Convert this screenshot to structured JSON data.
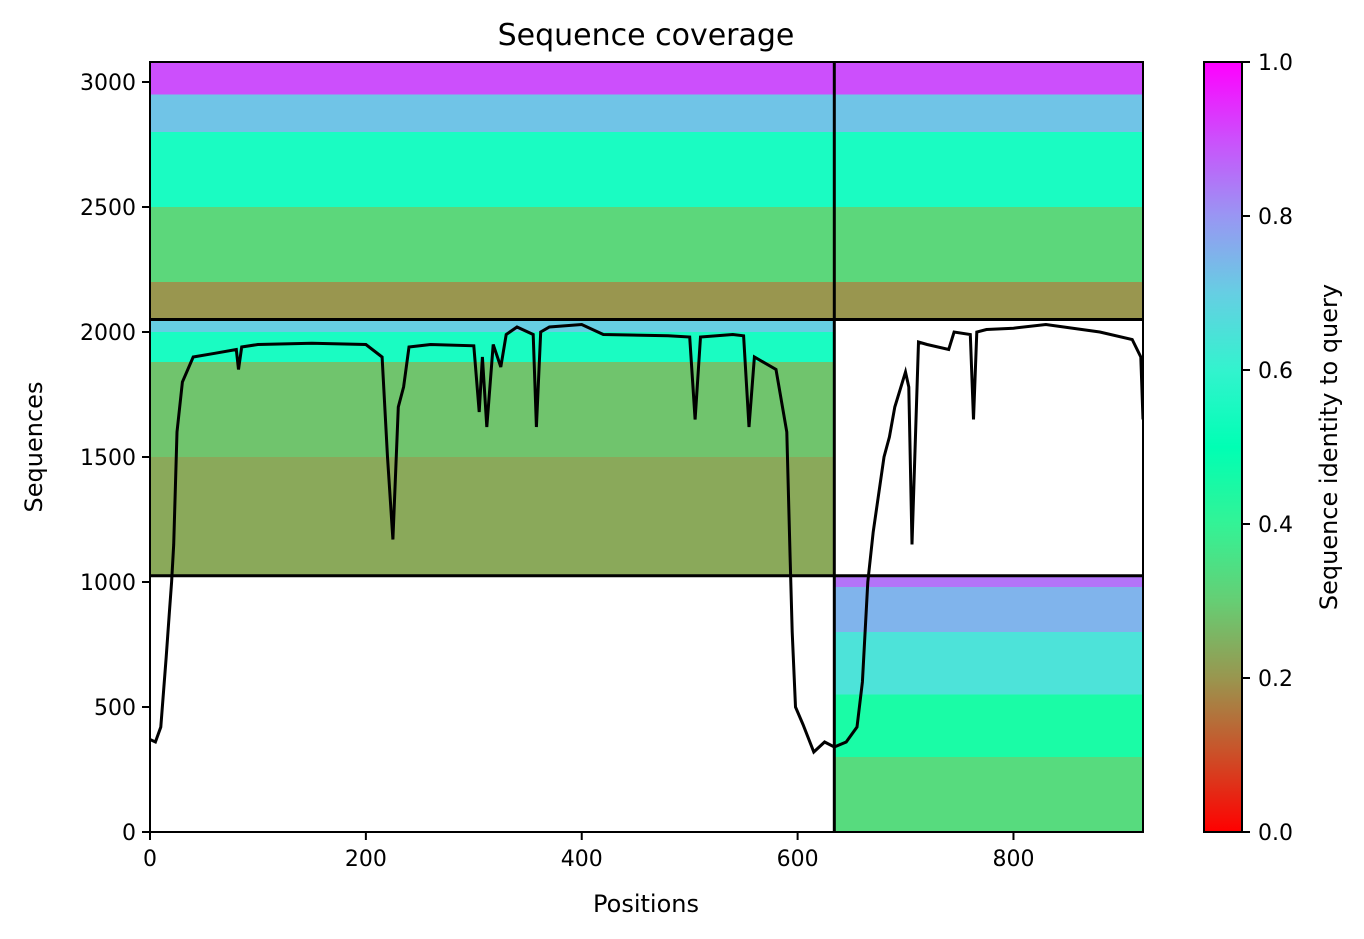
{
  "chart_data": {
    "type": "heatmap",
    "title": "Sequence coverage",
    "xlabel": "Positions",
    "ylabel": "Sequences",
    "xlim": [
      0,
      920
    ],
    "ylim": [
      0,
      3080
    ],
    "xticks": [
      0,
      200,
      400,
      600,
      800
    ],
    "yticks": [
      0,
      500,
      1000,
      1500,
      2000,
      2500,
      3000
    ],
    "grid": false,
    "colorbar": {
      "label": "Sequence identity to query",
      "range": [
        0.0,
        1.0
      ],
      "ticks": [
        0.0,
        0.2,
        0.4,
        0.6,
        0.8,
        1.0
      ],
      "colormap": "rainbow_r"
    },
    "chain_boundary_x": 634,
    "block_boundaries_y": [
      1025,
      2050
    ],
    "blocks": [
      {
        "name": "paired",
        "x": [
          0,
          634
        ],
        "y": [
          2050,
          3080
        ],
        "identity_bands": [
          [
            2050,
            2200,
            0.2
          ],
          [
            2200,
            2500,
            0.32
          ],
          [
            2500,
            2800,
            0.55
          ],
          [
            2800,
            2950,
            0.72
          ],
          [
            2950,
            3080,
            0.9
          ]
        ]
      },
      {
        "name": "paired",
        "x": [
          634,
          920
        ],
        "y": [
          2050,
          3080
        ],
        "identity_bands": [
          [
            2050,
            2200,
            0.2
          ],
          [
            2200,
            2500,
            0.32
          ],
          [
            2500,
            2800,
            0.55
          ],
          [
            2800,
            2950,
            0.72
          ],
          [
            2950,
            3080,
            0.9
          ]
        ]
      },
      {
        "name": "chain-1",
        "x": [
          0,
          634
        ],
        "y": [
          1025,
          2050
        ],
        "identity_bands": [
          [
            1025,
            1500,
            0.23
          ],
          [
            1500,
            1880,
            0.28
          ],
          [
            1880,
            2000,
            0.55
          ],
          [
            2000,
            2050,
            0.7
          ]
        ]
      },
      {
        "name": "chain-2",
        "x": [
          634,
          920
        ],
        "y": [
          0,
          1025
        ],
        "identity_bands": [
          [
            0,
            300,
            0.33
          ],
          [
            300,
            550,
            0.45
          ],
          [
            550,
            800,
            0.65
          ],
          [
            800,
            980,
            0.75
          ],
          [
            980,
            1025,
            0.85
          ]
        ]
      }
    ],
    "coverage_line": {
      "x": [
        0,
        5,
        10,
        15,
        18,
        20,
        22,
        25,
        30,
        40,
        60,
        80,
        82,
        85,
        100,
        150,
        200,
        215,
        220,
        225,
        230,
        235,
        240,
        260,
        300,
        305,
        308,
        312,
        318,
        325,
        330,
        340,
        355,
        358,
        362,
        370,
        400,
        420,
        480,
        500,
        505,
        510,
        540,
        550,
        555,
        560,
        580,
        590,
        593,
        595,
        598,
        605,
        615,
        625,
        634,
        645,
        655,
        660,
        665,
        670,
        680,
        685,
        690,
        700,
        703,
        706,
        712,
        720,
        740,
        745,
        760,
        763,
        766,
        775,
        800,
        830,
        880,
        910,
        918,
        920
      ],
      "y": [
        370,
        360,
        420,
        700,
        880,
        1000,
        1150,
        1600,
        1800,
        1900,
        1915,
        1930,
        1850,
        1940,
        1950,
        1955,
        1950,
        1900,
        1500,
        1170,
        1700,
        1780,
        1940,
        1950,
        1945,
        1680,
        1900,
        1620,
        1950,
        1860,
        1990,
        2020,
        1990,
        1620,
        2000,
        2020,
        2030,
        1990,
        1985,
        1980,
        1650,
        1980,
        1990,
        1985,
        1620,
        1900,
        1850,
        1600,
        1100,
        800,
        500,
        430,
        320,
        360,
        340,
        360,
        420,
        600,
        1000,
        1200,
        1500,
        1580,
        1700,
        1840,
        1780,
        1150,
        1960,
        1950,
        1930,
        2000,
        1990,
        1650,
        2000,
        2010,
        2015,
        2030,
        2000,
        1970,
        1900,
        1650
      ]
    }
  }
}
